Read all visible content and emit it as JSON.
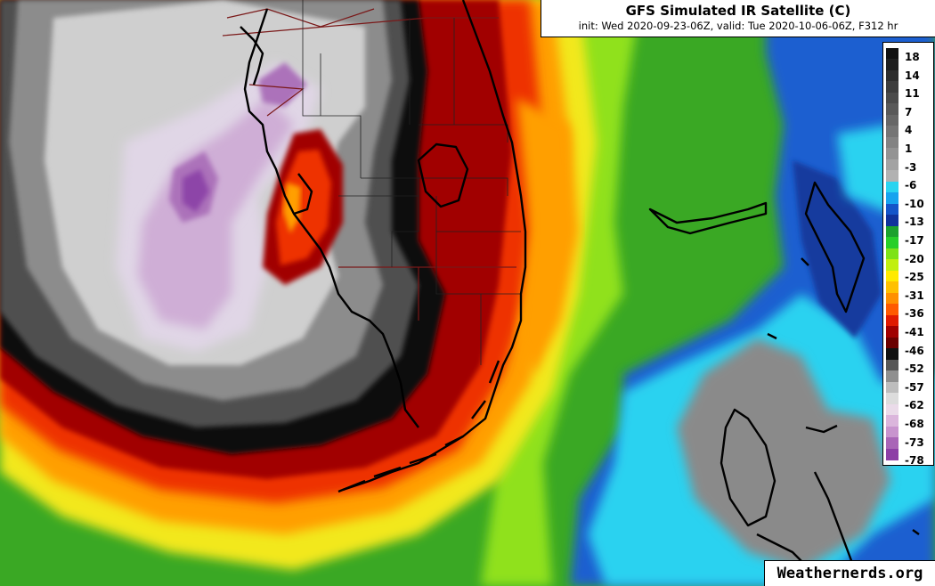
{
  "title": "GFS Simulated IR Satellite (C)",
  "subtitle": "init: Wed 2020-09-23-06Z, valid: Tue 2020-10-06-06Z, F312 hr",
  "watermark": "Weathernerds.org",
  "colorbar": {
    "labels": [
      "18",
      "14",
      "11",
      "7",
      "4",
      "1",
      "-3",
      "-6",
      "-10",
      "-13",
      "-17",
      "-20",
      "-25",
      "-31",
      "-36",
      "-41",
      "-46",
      "-52",
      "-57",
      "-62",
      "-68",
      "-73",
      "-78"
    ],
    "colors": [
      "#111111",
      "#1f1f1f",
      "#2e2e2e",
      "#3d3d3d",
      "#4b4b4b",
      "#595959",
      "#676767",
      "#757575",
      "#838383",
      "#939393",
      "#a3a3a3",
      "#b2b2b2",
      "#2ad4f0",
      "#17a3ef",
      "#1555c9",
      "#11329b",
      "#1ca12d",
      "#27cf28",
      "#7ee218",
      "#c1ef10",
      "#ffea00",
      "#ffc000",
      "#ff9000",
      "#ff5a00",
      "#e01a00",
      "#a00000",
      "#6a0000",
      "#111111",
      "#575757",
      "#8f8f8f",
      "#bdbdbd",
      "#dcdcdc",
      "#eadbe9",
      "#dbb6dc",
      "#c894ce",
      "#a965b7",
      "#8d3fa6"
    ]
  },
  "map": {
    "colors": {
      "bg": "#3aa824",
      "ocean_far": "#1d5fd0",
      "dark_blue": "#123a9e",
      "cyan": "#2cd2f0",
      "mid_blue": "#1890ea",
      "grey_east": "#8a8a8a",
      "yellow": "#f2e81a",
      "lime": "#90e11c",
      "orange": "#ff9f00",
      "red": "#ee3000",
      "dark_red": "#a10000",
      "black": "#101010",
      "dark_grey": "#505050",
      "grey": "#8c8c8c",
      "light_grey": "#cfcfcf",
      "pale_lavender": "#e0d6e6",
      "lavender": "#cfaed6",
      "purple": "#ac72ba",
      "deep_purple": "#8d45a8",
      "coastline": "#000000",
      "state_line": "#7a1818"
    }
  }
}
